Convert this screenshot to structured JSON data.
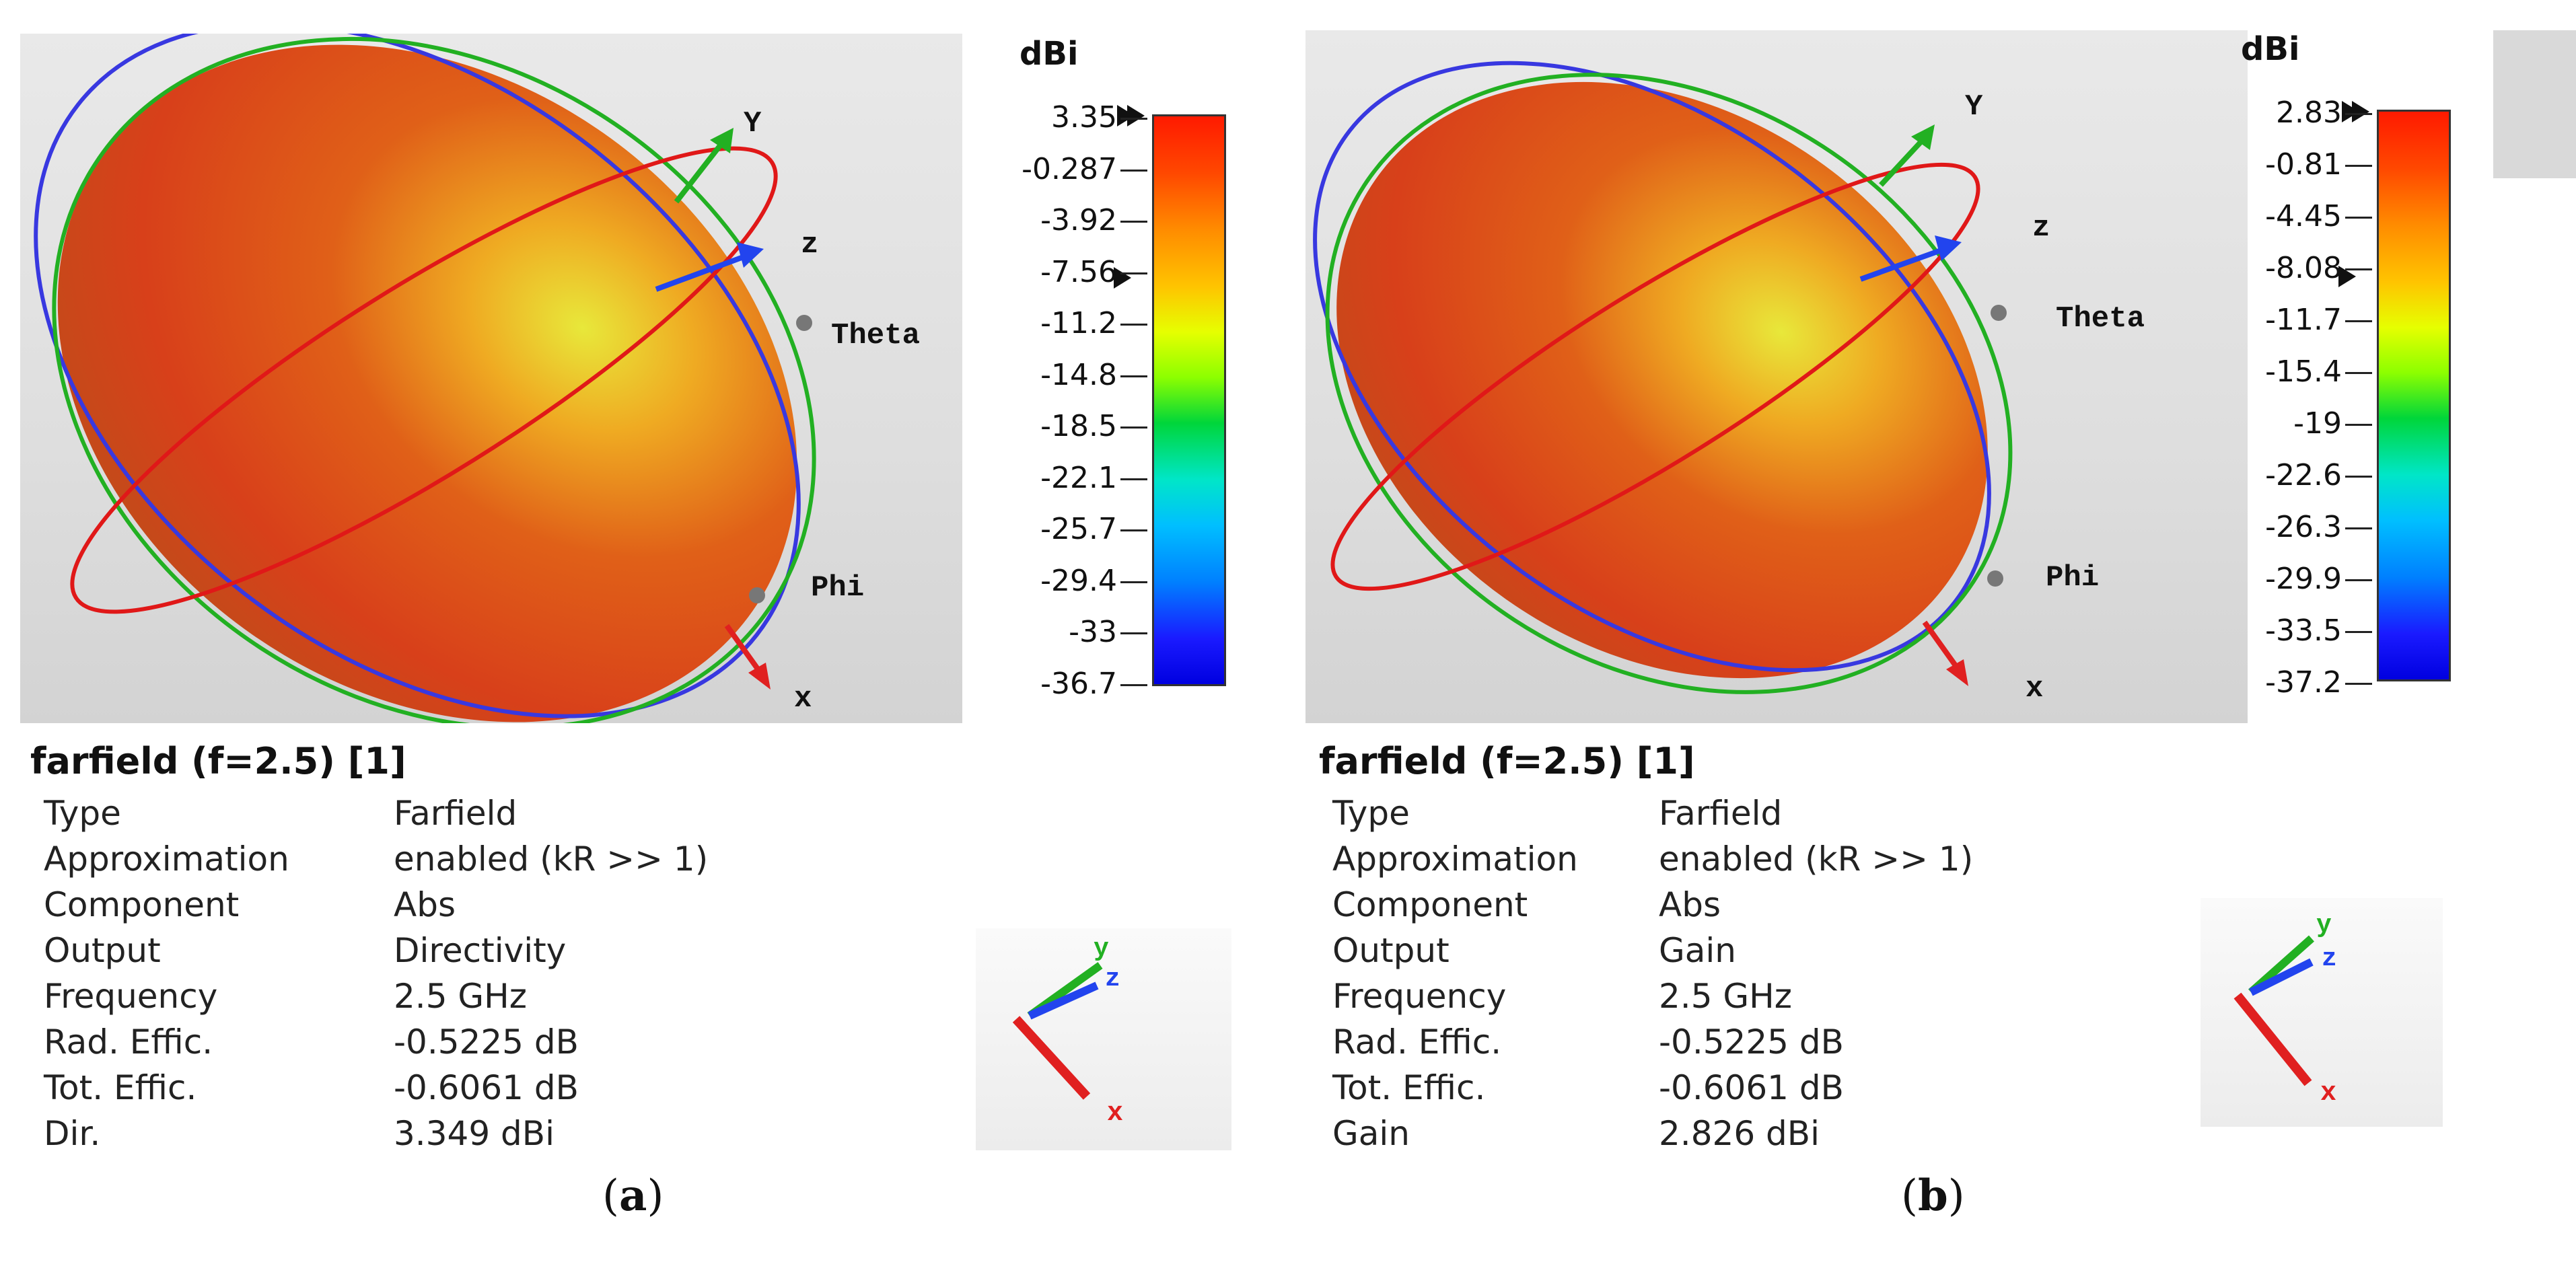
{
  "panels": [
    {
      "id": "a",
      "caption_letter": "a",
      "unit": "dBi",
      "scale": [
        "3.35",
        "-0.287",
        "-3.92",
        "-7.56",
        "-11.2",
        "-14.8",
        "-18.5",
        "-22.1",
        "-25.7",
        "-29.4",
        "-33",
        "-36.7"
      ],
      "axes": {
        "y": "Y",
        "z": "z",
        "x": "x",
        "theta": "Theta",
        "phi": "Phi"
      },
      "title": "farfield (f=2.5) [1]",
      "properties": [
        {
          "key": "Type",
          "value": "Farfield"
        },
        {
          "key": "Approximation",
          "value": "enabled (kR >> 1)"
        },
        {
          "key": "Component",
          "value": "Abs"
        },
        {
          "key": "Output",
          "value": "Directivity"
        },
        {
          "key": "Frequency",
          "value": "2.5 GHz"
        },
        {
          "key": "Rad. Effic.",
          "value": "-0.5225 dB"
        },
        {
          "key": "Tot. Effic.",
          "value": "-0.6061 dB"
        },
        {
          "key": "Dir.",
          "value": "3.349 dBi"
        }
      ],
      "mini_axes": {
        "y": "y",
        "z": "z",
        "x": "x"
      }
    },
    {
      "id": "b",
      "caption_letter": "b",
      "unit": "dBi",
      "scale": [
        "2.83",
        "-0.81",
        "-4.45",
        "-8.08",
        "-11.7",
        "-15.4",
        "-19",
        "-22.6",
        "-26.3",
        "-29.9",
        "-33.5",
        "-37.2"
      ],
      "axes": {
        "y": "Y",
        "z": "z",
        "x": "x",
        "theta": "Theta",
        "phi": "Phi"
      },
      "title": "farfield (f=2.5) [1]",
      "properties": [
        {
          "key": "Type",
          "value": "Farfield"
        },
        {
          "key": "Approximation",
          "value": "enabled (kR >> 1)"
        },
        {
          "key": "Component",
          "value": "Abs"
        },
        {
          "key": "Output",
          "value": "Gain"
        },
        {
          "key": "Frequency",
          "value": "2.5 GHz"
        },
        {
          "key": "Rad. Effic.",
          "value": "-0.5225 dB"
        },
        {
          "key": "Tot. Effic.",
          "value": "-0.6061 dB"
        },
        {
          "key": "Gain",
          "value": "2.826 dBi"
        }
      ],
      "mini_axes": {
        "y": "y",
        "z": "z",
        "x": "x"
      }
    }
  ],
  "colors": {
    "pattern_body": "#d8401a",
    "ring_red": "#e01818",
    "ring_blue": "#3838e0",
    "ring_green": "#22b022",
    "axis_x": "#e02020",
    "axis_y": "#22b022",
    "axis_z": "#2244ee"
  }
}
